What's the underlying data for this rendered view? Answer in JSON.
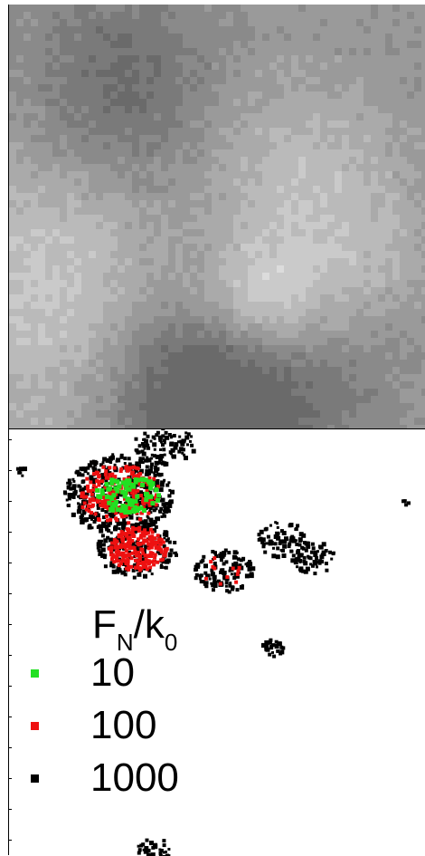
{
  "colors": {
    "surface_low": "#555555",
    "surface_high": "#ffffff",
    "level_10": "#22e022",
    "level_100": "#ee1111",
    "level_1000": "#000000"
  },
  "legend": {
    "title_main": "F",
    "title_sub1": "N",
    "title_mid": "/k",
    "title_sub2": "0",
    "items": [
      {
        "label": "10",
        "color": "#22e022"
      },
      {
        "label": "100",
        "color": "#ee1111"
      },
      {
        "label": "1000",
        "color": "#000000"
      }
    ]
  }
}
